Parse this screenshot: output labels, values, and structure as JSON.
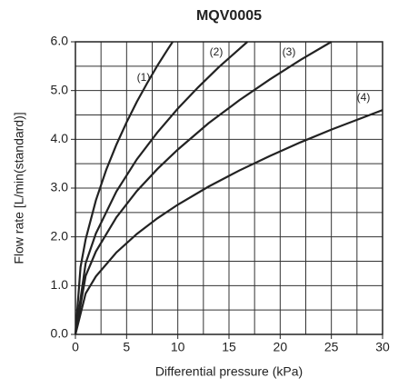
{
  "chart_data": {
    "type": "line",
    "title": "MQV0005",
    "xlabel": "Differential pressure (kPa)",
    "ylabel": "Flow rate [L/min(standard)]",
    "xlim": [
      0,
      30
    ],
    "ylim": [
      0,
      6
    ],
    "xticks": [
      0,
      5,
      10,
      15,
      20,
      25,
      30
    ],
    "yticks": [
      {
        "value": 0,
        "label": "0.0"
      },
      {
        "value": 1,
        "label": "1.0"
      },
      {
        "value": 2,
        "label": "2.0"
      },
      {
        "value": 3,
        "label": "3.0"
      },
      {
        "value": 4,
        "label": "4.0"
      },
      {
        "value": 5,
        "label": "5.0"
      },
      {
        "value": 6,
        "label": "6.0"
      }
    ],
    "xgrid": [
      2.5,
      5,
      7.5,
      10,
      12.5,
      15,
      17.5,
      20,
      22.5,
      25,
      27.5
    ],
    "ygrid": [
      0.5,
      1,
      1.5,
      2,
      2.5,
      3,
      3.5,
      4,
      4.5,
      5,
      5.5
    ],
    "grid": true,
    "series": [
      {
        "name": "(1)",
        "color": "#222222",
        "x": [
          0,
          0.5,
          1,
          2,
          3,
          4,
          5,
          6,
          7,
          8,
          9,
          9.5
        ],
        "values": [
          0,
          1.38,
          1.95,
          2.75,
          3.37,
          3.89,
          4.35,
          4.77,
          5.15,
          5.51,
          5.84,
          6
        ]
      },
      {
        "name": "(2)",
        "color": "#222222",
        "x": [
          0,
          1,
          2,
          4,
          6,
          8,
          10,
          12,
          14,
          16.8
        ],
        "values": [
          0,
          1.46,
          2.07,
          2.93,
          3.59,
          4.14,
          4.63,
          5.07,
          5.48,
          6
        ]
      },
      {
        "name": "(3)",
        "color": "#222222",
        "x": [
          0,
          1,
          2,
          4,
          6,
          8,
          10,
          13,
          16,
          19,
          22,
          25
        ],
        "values": [
          0,
          1.2,
          1.7,
          2.4,
          2.94,
          3.39,
          3.79,
          4.33,
          4.8,
          5.23,
          5.63,
          6
        ]
      },
      {
        "name": "(4)",
        "color": "#222222",
        "x": [
          0,
          1,
          2,
          4,
          6,
          8,
          10,
          13,
          16,
          19,
          22,
          25,
          28,
          30
        ],
        "values": [
          0,
          0.84,
          1.19,
          1.68,
          2.06,
          2.38,
          2.66,
          3.03,
          3.36,
          3.66,
          3.94,
          4.2,
          4.44,
          4.6
        ]
      }
    ]
  }
}
